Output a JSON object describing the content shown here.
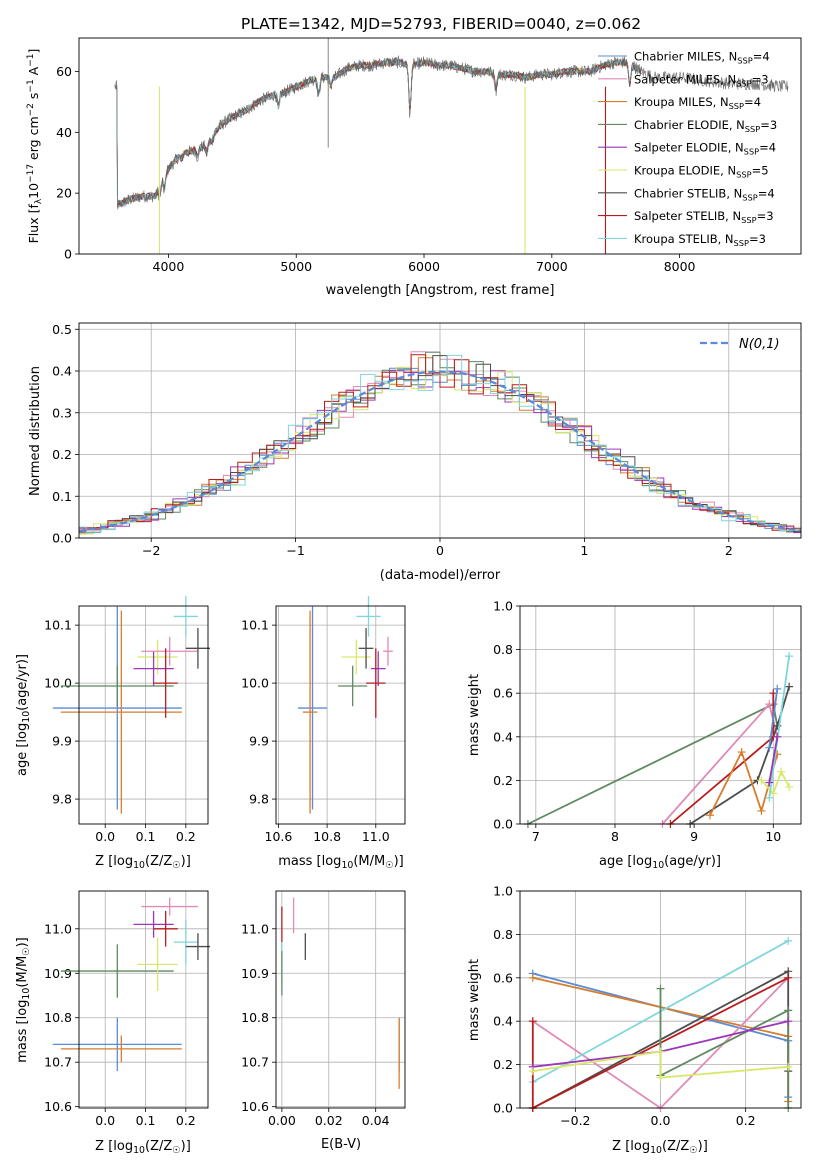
{
  "figure_title": "PLATE=1342, MJD=52793, FIBERID=0040, z=0.062",
  "colors": {
    "Chabrier MILES": "#5b8bd6",
    "Salpeter MILES": "#e08ab8",
    "Kroupa MILES": "#d77d2d",
    "Chabrier ELODIE": "#5e8a5e",
    "Salpeter ELODIE": "#9b37b8",
    "Kroupa ELODIE": "#d9e86a",
    "Chabrier STELIB": "#4d4d4d",
    "Salpeter STELIB": "#b81c1c",
    "Kroupa STELIB": "#7fd6dc",
    "normal": "#5b8bd6"
  },
  "chart_data": [
    {
      "id": "spectrum",
      "type": "line",
      "title": "PLATE=1342, MJD=52793, FIBERID=0040, z=0.062",
      "xlabel": "wavelength [Angstrom, rest frame]",
      "ylabel_parts": [
        "Flux [f",
        "λ",
        "10",
        "−17",
        " erg cm",
        "−2",
        " s",
        "−1",
        " A",
        "−1",
        "]"
      ],
      "xlim": [
        3300,
        8950
      ],
      "ylim": [
        0,
        71
      ],
      "xticks": [
        4000,
        5000,
        6000,
        7000,
        8000
      ],
      "yticks": [
        0,
        20,
        40,
        60
      ],
      "legend_position": "upper right",
      "legend": [
        {
          "name": "Chabrier MILES",
          "n": "4"
        },
        {
          "name": "Salpeter MILES",
          "n": "3"
        },
        {
          "name": "Kroupa MILES",
          "n": "4"
        },
        {
          "name": "Chabrier ELODIE",
          "n": "3"
        },
        {
          "name": "Salpeter ELODIE",
          "n": "4"
        },
        {
          "name": "Kroupa ELODIE",
          "n": "5"
        },
        {
          "name": "Chabrier STELIB",
          "n": "4"
        },
        {
          "name": "Salpeter STELIB",
          "n": "3"
        },
        {
          "name": "Kroupa STELIB",
          "n": "3"
        }
      ],
      "continuum": [
        [
          3600,
          16
        ],
        [
          3700,
          18
        ],
        [
          3800,
          19
        ],
        [
          3900,
          19
        ],
        [
          3950,
          25
        ],
        [
          4000,
          28
        ],
        [
          4100,
          33
        ],
        [
          4200,
          34
        ],
        [
          4300,
          36
        ],
        [
          4400,
          42
        ],
        [
          4500,
          45
        ],
        [
          4600,
          47
        ],
        [
          4700,
          50
        ],
        [
          4800,
          52
        ],
        [
          4900,
          53
        ],
        [
          5000,
          55
        ],
        [
          5100,
          57
        ],
        [
          5200,
          58
        ],
        [
          5300,
          58
        ],
        [
          5400,
          61
        ],
        [
          5500,
          62
        ],
        [
          5600,
          62
        ],
        [
          5700,
          63
        ],
        [
          5800,
          63
        ],
        [
          5900,
          62
        ],
        [
          6000,
          63
        ],
        [
          6100,
          62
        ],
        [
          6200,
          62
        ],
        [
          6300,
          61
        ],
        [
          6400,
          60
        ],
        [
          6500,
          60
        ],
        [
          6600,
          59
        ],
        [
          6700,
          59
        ],
        [
          6800,
          58
        ],
        [
          6900,
          59
        ],
        [
          7000,
          59
        ],
        [
          7100,
          60
        ],
        [
          7200,
          60
        ],
        [
          7300,
          60
        ],
        [
          7400,
          62
        ],
        [
          7500,
          63
        ],
        [
          7600,
          63
        ],
        [
          7700,
          60
        ],
        [
          7800,
          58
        ],
        [
          8000,
          58
        ],
        [
          8200,
          57
        ],
        [
          8400,
          56
        ],
        [
          8600,
          56
        ],
        [
          8800,
          55
        ]
      ],
      "absorption_lines": [
        [
          3934,
          19
        ],
        [
          3968,
          21
        ],
        [
          4101,
          31
        ],
        [
          4227,
          32
        ],
        [
          4300,
          33
        ],
        [
          4340,
          37
        ],
        [
          4861,
          48
        ],
        [
          5175,
          52
        ],
        [
          5270,
          55
        ],
        [
          5890,
          46
        ],
        [
          6563,
          54
        ],
        [
          7610,
          55
        ]
      ],
      "spike": {
        "x": 5250,
        "y": 73
      },
      "artifact_lines": [
        {
          "x": 3930,
          "color_key": "Kroupa ELODIE"
        },
        {
          "x": 6790,
          "color_key": "Kroupa ELODIE"
        },
        {
          "x": 7420,
          "color_key": "Salpeter STELIB"
        }
      ]
    },
    {
      "id": "residuals",
      "type": "histogram",
      "xlabel": "(data-model)/error",
      "ylabel": "Normed distribution",
      "xlim": [
        -2.5,
        2.5
      ],
      "ylim": [
        0,
        0.515
      ],
      "xticks": [
        -2,
        -1,
        0,
        1,
        2
      ],
      "xtick_labels": [
        "−2",
        "−1",
        "0",
        "1",
        "2"
      ],
      "yticks": [
        0,
        0.1,
        0.2,
        0.3,
        0.4,
        0.5
      ],
      "ytick_labels": [
        "0.0",
        "0.1",
        "0.2",
        "0.3",
        "0.4",
        "0.5"
      ],
      "grid": true,
      "bin_width": 0.1,
      "legend_position": "upper right",
      "legend_label": "N(0,1)"
    },
    {
      "id": "age-vs-z",
      "type": "errorbar",
      "xlabel_parts": [
        "Z [log",
        "10",
        "(Z/Z",
        "☉",
        ")]"
      ],
      "ylabel_parts": [
        "age  [log",
        "10",
        "(age/yr)]"
      ],
      "xlim": [
        -0.065,
        0.255
      ],
      "ylim": [
        9.757,
        10.133
      ],
      "xticks": [
        0.0,
        0.1,
        0.2
      ],
      "xtick_labels": [
        "0.0",
        "0.1",
        "0.2"
      ],
      "yticks": [
        9.8,
        9.9,
        10.0,
        10.1
      ],
      "ytick_labels": [
        "9.8",
        "9.9",
        "10.0",
        "10.1"
      ],
      "grid": true
    },
    {
      "id": "age-vs-mass",
      "type": "errorbar",
      "xlabel_parts": [
        "mass [log",
        "10",
        "(M/M",
        "☉",
        ")]"
      ],
      "xlim": [
        10.59,
        11.12
      ],
      "ylim": [
        9.757,
        10.133
      ],
      "xticks": [
        10.6,
        10.8,
        11.0
      ],
      "xtick_labels": [
        "10.6",
        "10.8",
        "11.0"
      ],
      "yticks": [
        9.8,
        9.9,
        10.0,
        10.1
      ],
      "ytick_labels": [
        "9.8",
        "9.9",
        "10.0",
        "10.1"
      ],
      "grid": true
    },
    {
      "id": "weight-vs-age",
      "type": "line",
      "xlabel_parts": [
        "age  [log",
        "10",
        "(age/yr)]"
      ],
      "ylabel": "mass weight",
      "xlim": [
        6.8,
        10.35
      ],
      "ylim": [
        0,
        1
      ],
      "xticks": [
        7,
        8,
        9,
        10
      ],
      "xtick_labels": [
        "7",
        "8",
        "9",
        "10"
      ],
      "yticks": [
        0,
        0.2,
        0.4,
        0.6,
        0.8,
        1.0
      ],
      "ytick_labels": [
        "0.0",
        "0.2",
        "0.4",
        "0.6",
        "0.8",
        "1.0"
      ],
      "grid": true,
      "series": [
        {
          "color_key": "Chabrier ELODIE",
          "x": [
            6.9,
            10.0,
            10.05
          ],
          "y": [
            0.0,
            0.55,
            0.45
          ]
        },
        {
          "color_key": "Salpeter MILES",
          "x": [
            8.6,
            9.95,
            10.05
          ],
          "y": [
            0.0,
            0.55,
            0.4
          ]
        },
        {
          "color_key": "Chabrier STELIB",
          "x": [
            8.95,
            9.8,
            10.05,
            10.2
          ],
          "y": [
            0.0,
            0.2,
            0.45,
            0.63
          ]
        },
        {
          "color_key": "Salpeter STELIB",
          "x": [
            8.7,
            10.0,
            10.0
          ],
          "y": [
            0.0,
            0.4,
            0.6
          ]
        },
        {
          "color_key": "Kroupa MILES",
          "x": [
            9.2,
            9.6,
            9.85,
            10.05
          ],
          "y": [
            0.04,
            0.33,
            0.06,
            0.32
          ]
        },
        {
          "color_key": "Kroupa ELODIE",
          "x": [
            9.85,
            10.0,
            10.1,
            10.2
          ],
          "y": [
            0.2,
            0.14,
            0.24,
            0.17
          ]
        },
        {
          "color_key": "Chabrier MILES",
          "x": [
            9.95,
            10.05
          ],
          "y": [
            0.35,
            0.62
          ]
        },
        {
          "color_key": "Kroupa STELIB",
          "x": [
            9.95,
            10.2
          ],
          "y": [
            0.12,
            0.77
          ]
        },
        {
          "color_key": "Salpeter ELODIE",
          "x": [
            9.95,
            10.05
          ],
          "y": [
            0.19,
            0.4
          ]
        }
      ]
    },
    {
      "id": "mass-vs-z",
      "type": "errorbar",
      "xlabel_parts": [
        "Z [log",
        "10",
        "(Z/Z",
        "☉",
        ")]"
      ],
      "ylabel_parts": [
        "mass [log",
        "10",
        "(M/M",
        "☉",
        ")]"
      ],
      "xlim": [
        -0.065,
        0.255
      ],
      "ylim": [
        10.597,
        11.085
      ],
      "xticks": [
        0.0,
        0.1,
        0.2
      ],
      "xtick_labels": [
        "0.0",
        "0.1",
        "0.2"
      ],
      "yticks": [
        10.6,
        10.7,
        10.8,
        10.9,
        11.0
      ],
      "ytick_labels": [
        "10.6",
        "10.7",
        "10.8",
        "10.9",
        "11.0"
      ],
      "grid": true
    },
    {
      "id": "mass-vs-ebv",
      "type": "errorbar",
      "xlabel": "E(B-V)",
      "xlim": [
        -0.0025,
        0.0525
      ],
      "ylim": [
        10.597,
        11.085
      ],
      "xticks": [
        0.0,
        0.02,
        0.04
      ],
      "xtick_labels": [
        "0.00",
        "0.02",
        "0.04"
      ],
      "yticks": [
        10.6,
        10.7,
        10.8,
        10.9,
        11.0
      ],
      "ytick_labels": [
        "10.6",
        "10.7",
        "10.8",
        "10.9",
        "11.0"
      ],
      "grid": true,
      "points": [
        {
          "color_key": "Salpeter MILES",
          "x": 0.005,
          "y": 11.03,
          "xerr": 0,
          "yerr": 0.04
        },
        {
          "color_key": "Salpeter STELIB",
          "x": 0.0,
          "y": 11.0,
          "xerr": 0,
          "yerr": 0.05
        },
        {
          "color_key": "Kroupa ELODIE",
          "x": 0.0,
          "y": 10.92,
          "xerr": 0,
          "yerr": 0.05
        },
        {
          "color_key": "Kroupa STELIB",
          "x": 0.0,
          "y": 10.93,
          "xerr": 0,
          "yerr": 0.04
        },
        {
          "color_key": "Chabrier ELODIE",
          "x": 0.0,
          "y": 10.9,
          "xerr": 0,
          "yerr": 0.05
        },
        {
          "color_key": "Chabrier STELIB",
          "x": 0.01,
          "y": 10.96,
          "xerr": 0,
          "yerr": 0.03
        },
        {
          "color_key": "Chabrier MILES",
          "x": 0.05,
          "y": 10.74,
          "xerr": 0,
          "yerr": 0.06
        },
        {
          "color_key": "Kroupa MILES",
          "x": 0.05,
          "y": 10.72,
          "xerr": 0,
          "yerr": 0.08
        }
      ]
    },
    {
      "id": "weight-vs-z",
      "type": "line",
      "xlabel_parts": [
        "Z [log",
        "10",
        "(Z/Z",
        "☉",
        ")]"
      ],
      "ylabel": "mass weight",
      "xlim": [
        -0.33,
        0.33
      ],
      "ylim": [
        0,
        1
      ],
      "xticks": [
        -0.2,
        0.0,
        0.2
      ],
      "xtick_labels": [
        "−0.2",
        "0.0",
        "0.2"
      ],
      "yticks": [
        0,
        0.2,
        0.4,
        0.6,
        0.8,
        1.0
      ],
      "ytick_labels": [
        "0.0",
        "0.2",
        "0.4",
        "0.6",
        "0.8",
        "1.0"
      ],
      "grid": true,
      "series": [
        {
          "color_key": "Chabrier MILES",
          "x": [
            -0.3,
            0.3,
            0.3
          ],
          "y": [
            0.62,
            0.31,
            0.05
          ]
        },
        {
          "color_key": "Kroupa MILES",
          "x": [
            -0.3,
            0.3,
            0.3
          ],
          "y": [
            0.6,
            0.33,
            0.03
          ]
        },
        {
          "color_key": "Salpeter MILES",
          "x": [
            -0.3,
            0.0,
            0.3
          ],
          "y": [
            0.4,
            0.0,
            0.6
          ]
        },
        {
          "color_key": "Kroupa STELIB",
          "x": [
            -0.3,
            0.3
          ],
          "y": [
            0.12,
            0.77
          ]
        },
        {
          "color_key": "Chabrier STELIB",
          "x": [
            -0.3,
            0.3,
            0.3
          ],
          "y": [
            0.0,
            0.63,
            0.17
          ]
        },
        {
          "color_key": "Salpeter STELIB",
          "x": [
            -0.3,
            -0.3,
            0.3
          ],
          "y": [
            0.4,
            0.0,
            0.6
          ]
        },
        {
          "color_key": "Chabrier ELODIE",
          "x": [
            0.0,
            0.0,
            0.3,
            0.3
          ],
          "y": [
            0.55,
            0.15,
            0.45,
            0.0
          ]
        },
        {
          "color_key": "Salpeter ELODIE",
          "x": [
            -0.3,
            0.0,
            0.3
          ],
          "y": [
            0.19,
            0.26,
            0.4
          ]
        },
        {
          "color_key": "Kroupa ELODIE",
          "x": [
            -0.3,
            0.0,
            0.0,
            0.3
          ],
          "y": [
            0.17,
            0.26,
            0.14,
            0.19
          ]
        }
      ]
    }
  ],
  "ssp_points": [
    {
      "color_key": "Chabrier MILES",
      "z": 0.03,
      "z_err": 0.16,
      "age": 9.957,
      "age_err": 0.175,
      "mass": 10.74,
      "mass_err": 0.06
    },
    {
      "color_key": "Kroupa MILES",
      "z": 0.04,
      "z_err": 0.15,
      "age": 9.95,
      "age_err": 0.175,
      "mass": 10.73,
      "mass_err": 0.03
    },
    {
      "color_key": "Chabrier ELODIE",
      "z": 0.03,
      "z_err": 0.14,
      "age": 9.995,
      "age_err": 0.035,
      "mass": 10.905,
      "mass_err": 0.06
    },
    {
      "color_key": "Kroupa ELODIE",
      "z": 0.13,
      "z_err": 0.05,
      "age": 10.045,
      "age_err": 0.03,
      "mass": 10.92,
      "mass_err": 0.06
    },
    {
      "color_key": "Salpeter ELODIE",
      "z": 0.12,
      "z_err": 0.05,
      "age": 10.025,
      "age_err": 0.03,
      "mass": 11.01,
      "mass_err": 0.03
    },
    {
      "color_key": "Salpeter MILES",
      "z": 0.16,
      "z_err": 0.07,
      "age": 10.055,
      "age_err": 0.025,
      "mass": 11.05,
      "mass_err": 0.02
    },
    {
      "color_key": "Salpeter STELIB",
      "z": 0.15,
      "z_err": 0.03,
      "age": 10.0,
      "age_err": 0.06,
      "mass": 11.0,
      "mass_err": 0.04
    },
    {
      "color_key": "Kroupa STELIB",
      "z": 0.2,
      "z_err": 0.03,
      "age": 10.115,
      "age_err": 0.035,
      "mass": 10.97,
      "mass_err": 0.05
    },
    {
      "color_key": "Chabrier STELIB",
      "z": 0.23,
      "z_err": 0.03,
      "age": 10.06,
      "age_err": 0.035,
      "mass": 10.96,
      "mass_err": 0.03
    }
  ]
}
